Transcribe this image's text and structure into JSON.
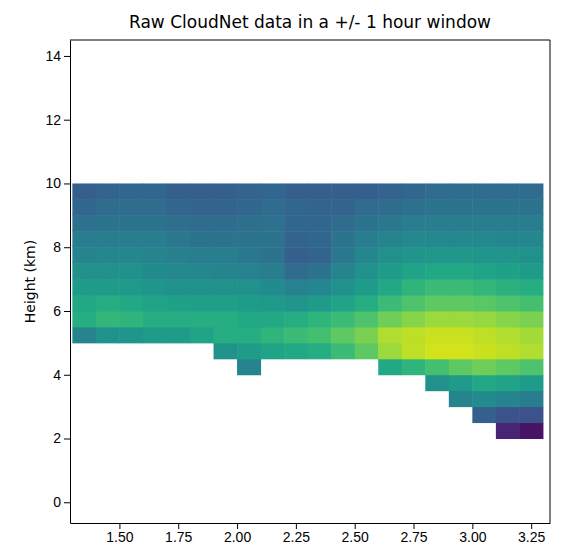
{
  "chart_data": {
    "type": "heatmap",
    "title": "Raw CloudNet data in a +/- 1 hour window",
    "ylabel": "Height (km)",
    "color": "viridis",
    "zlim": [
      0,
      1
    ],
    "xlim": [
      1.29,
      3.33
    ],
    "ylim": [
      -0.65,
      14.5
    ],
    "xticks": [
      {
        "value": 1.5,
        "label": "1.50"
      },
      {
        "value": 1.75,
        "label": "1.75"
      },
      {
        "value": 2.0,
        "label": "2.00"
      },
      {
        "value": 2.25,
        "label": "2.25"
      },
      {
        "value": 2.5,
        "label": "2.50"
      },
      {
        "value": 2.75,
        "label": "2.75"
      },
      {
        "value": 3.0,
        "label": "3.00"
      },
      {
        "value": 3.25,
        "label": "3.25"
      }
    ],
    "yticks": [
      0,
      2,
      4,
      6,
      8,
      10,
      12,
      14
    ],
    "x_edges": [
      1.3,
      1.4,
      1.5,
      1.6,
      1.7,
      1.8,
      1.9,
      2.0,
      2.1,
      2.2,
      2.3,
      2.4,
      2.5,
      2.6,
      2.7,
      2.8,
      2.9,
      3.0,
      3.1,
      3.2,
      3.3
    ],
    "y_edges": [
      2.0,
      2.5,
      3.0,
      3.5,
      4.0,
      4.5,
      5.0,
      5.5,
      6.0,
      6.5,
      7.0,
      7.5,
      8.0,
      8.5,
      9.0,
      9.5,
      10.0
    ],
    "cells": [
      [
        null,
        null,
        null,
        null,
        null,
        null,
        null,
        null,
        null,
        null,
        null,
        null,
        null,
        null,
        null,
        null,
        null,
        null,
        0.1,
        0.05
      ],
      [
        null,
        null,
        null,
        null,
        null,
        null,
        null,
        null,
        null,
        null,
        null,
        null,
        null,
        null,
        null,
        null,
        null,
        0.3,
        0.25,
        0.25
      ],
      [
        null,
        null,
        null,
        null,
        null,
        null,
        null,
        null,
        null,
        null,
        null,
        null,
        null,
        null,
        null,
        null,
        0.45,
        0.48,
        0.45,
        0.42
      ],
      [
        null,
        null,
        null,
        null,
        null,
        null,
        null,
        null,
        null,
        null,
        null,
        null,
        null,
        null,
        null,
        0.5,
        0.55,
        0.6,
        0.58,
        0.55
      ],
      [
        null,
        null,
        null,
        null,
        null,
        null,
        null,
        0.45,
        null,
        null,
        null,
        null,
        null,
        0.6,
        0.65,
        0.7,
        0.75,
        0.78,
        0.75,
        0.72
      ],
      [
        null,
        null,
        null,
        null,
        null,
        null,
        0.5,
        0.55,
        0.58,
        0.6,
        0.62,
        0.68,
        0.75,
        0.85,
        0.9,
        0.93,
        0.93,
        0.92,
        0.9,
        0.88
      ],
      [
        0.45,
        0.5,
        0.52,
        0.55,
        0.55,
        0.58,
        0.62,
        0.62,
        0.65,
        0.68,
        0.7,
        0.75,
        0.8,
        0.88,
        0.9,
        0.92,
        0.92,
        0.9,
        0.88,
        0.86
      ],
      [
        0.62,
        0.66,
        0.65,
        0.62,
        0.62,
        0.62,
        0.62,
        0.6,
        0.6,
        0.62,
        0.65,
        0.68,
        0.72,
        0.78,
        0.82,
        0.85,
        0.85,
        0.84,
        0.82,
        0.8
      ],
      [
        0.6,
        0.62,
        0.6,
        0.58,
        0.57,
        0.56,
        0.56,
        0.55,
        0.54,
        0.52,
        0.55,
        0.58,
        0.62,
        0.68,
        0.72,
        0.75,
        0.75,
        0.74,
        0.72,
        0.7
      ],
      [
        0.55,
        0.55,
        0.54,
        0.52,
        0.5,
        0.5,
        0.5,
        0.5,
        0.48,
        0.44,
        0.46,
        0.5,
        0.55,
        0.6,
        0.65,
        0.68,
        0.68,
        0.66,
        0.64,
        0.62
      ],
      [
        0.5,
        0.5,
        0.5,
        0.48,
        0.47,
        0.46,
        0.45,
        0.44,
        0.42,
        0.35,
        0.38,
        0.45,
        0.5,
        0.55,
        0.58,
        0.6,
        0.6,
        0.58,
        0.57,
        0.55
      ],
      [
        0.45,
        0.46,
        0.46,
        0.45,
        0.43,
        0.42,
        0.42,
        0.4,
        0.38,
        0.3,
        0.32,
        0.4,
        0.46,
        0.5,
        0.52,
        0.53,
        0.53,
        0.52,
        0.52,
        0.5
      ],
      [
        0.42,
        0.42,
        0.42,
        0.42,
        0.4,
        0.38,
        0.38,
        0.38,
        0.38,
        0.32,
        0.33,
        0.38,
        0.42,
        0.45,
        0.47,
        0.47,
        0.47,
        0.47,
        0.46,
        0.46
      ],
      [
        0.37,
        0.38,
        0.38,
        0.38,
        0.36,
        0.35,
        0.35,
        0.36,
        0.37,
        0.33,
        0.33,
        0.35,
        0.38,
        0.4,
        0.42,
        0.42,
        0.42,
        0.42,
        0.42,
        0.42
      ],
      [
        0.33,
        0.35,
        0.35,
        0.35,
        0.33,
        0.32,
        0.32,
        0.33,
        0.35,
        0.33,
        0.32,
        0.32,
        0.35,
        0.35,
        0.37,
        0.38,
        0.38,
        0.38,
        0.38,
        0.38
      ],
      [
        0.3,
        0.32,
        0.33,
        0.33,
        0.3,
        0.3,
        0.3,
        0.32,
        0.33,
        0.3,
        0.3,
        0.3,
        0.3,
        0.32,
        0.33,
        0.35,
        0.35,
        0.35,
        0.35,
        0.35
      ]
    ]
  }
}
